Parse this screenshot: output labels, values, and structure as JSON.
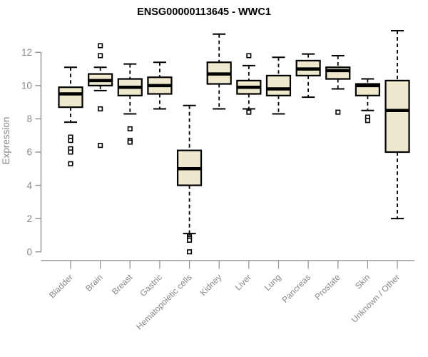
{
  "title": "ENSG00000113645 - WWC1",
  "chart_data": {
    "type": "boxplot",
    "title": "ENSG00000113645 - WWC1",
    "xlabel": "",
    "ylabel": "Expression",
    "ylim": [
      0,
      13.5
    ],
    "yticks": [
      0,
      2,
      4,
      6,
      8,
      10,
      12
    ],
    "grid": false,
    "legend": "none",
    "categories": [
      "Bladder",
      "Brain",
      "Breast",
      "Gastric",
      "Hematopoietic cells",
      "Kidney",
      "Liver",
      "Lung",
      "Pancreas",
      "Prostate",
      "Skin",
      "Unknown / Other"
    ],
    "boxes": [
      {
        "category": "Bladder",
        "whisker_low": 7.8,
        "q1": 8.7,
        "median": 9.5,
        "q3": 9.9,
        "whisker_high": 11.1,
        "outliers": [
          6.9,
          6.7,
          6.2,
          6.0,
          5.3
        ]
      },
      {
        "category": "Brain",
        "whisker_low": 9.7,
        "q1": 10.0,
        "median": 10.3,
        "q3": 10.7,
        "whisker_high": 11.1,
        "outliers": [
          12.4,
          11.8,
          8.6,
          6.4
        ]
      },
      {
        "category": "Breast",
        "whisker_low": 8.3,
        "q1": 9.4,
        "median": 9.9,
        "q3": 10.4,
        "whisker_high": 11.3,
        "outliers": [
          7.4,
          6.7,
          6.6
        ]
      },
      {
        "category": "Gastric",
        "whisker_low": 8.6,
        "q1": 9.5,
        "median": 10.0,
        "q3": 10.5,
        "whisker_high": 11.4,
        "outliers": []
      },
      {
        "category": "Hematopoietic cells",
        "whisker_low": 1.1,
        "q1": 4.0,
        "median": 5.0,
        "q3": 6.1,
        "whisker_high": 8.8,
        "outliers": [
          0.9,
          0.8,
          0.7,
          0.0
        ]
      },
      {
        "category": "Kidney",
        "whisker_low": 8.6,
        "q1": 10.1,
        "median": 10.7,
        "q3": 11.4,
        "whisker_high": 13.1,
        "outliers": []
      },
      {
        "category": "Liver",
        "whisker_low": 8.6,
        "q1": 9.5,
        "median": 9.9,
        "q3": 10.3,
        "whisker_high": 11.2,
        "outliers": [
          11.8,
          8.4
        ]
      },
      {
        "category": "Lung",
        "whisker_low": 8.3,
        "q1": 9.4,
        "median": 9.8,
        "q3": 10.6,
        "whisker_high": 11.7,
        "outliers": []
      },
      {
        "category": "Pancreas",
        "whisker_low": 9.3,
        "q1": 10.6,
        "median": 11.0,
        "q3": 11.5,
        "whisker_high": 11.9,
        "outliers": []
      },
      {
        "category": "Prostate",
        "whisker_low": 9.8,
        "q1": 10.4,
        "median": 10.9,
        "q3": 11.1,
        "whisker_high": 11.8,
        "outliers": [
          8.4
        ]
      },
      {
        "category": "Skin",
        "whisker_low": 8.5,
        "q1": 9.4,
        "median": 10.0,
        "q3": 10.1,
        "whisker_high": 10.4,
        "outliers": [
          8.1,
          7.9
        ]
      },
      {
        "category": "Unknown / Other",
        "whisker_low": 2.0,
        "q1": 6.0,
        "median": 8.5,
        "q3": 10.3,
        "whisker_high": 13.3,
        "outliers": []
      }
    ]
  },
  "colors": {
    "background": "#FFFFFF",
    "box_fill": "#EDE8CE",
    "box_stroke": "#000000",
    "median": "#000000",
    "whisker": "#000000",
    "outlier": "#000000",
    "axis_line": "#979797",
    "tick_text": "#878787",
    "title_text": "#000000"
  }
}
